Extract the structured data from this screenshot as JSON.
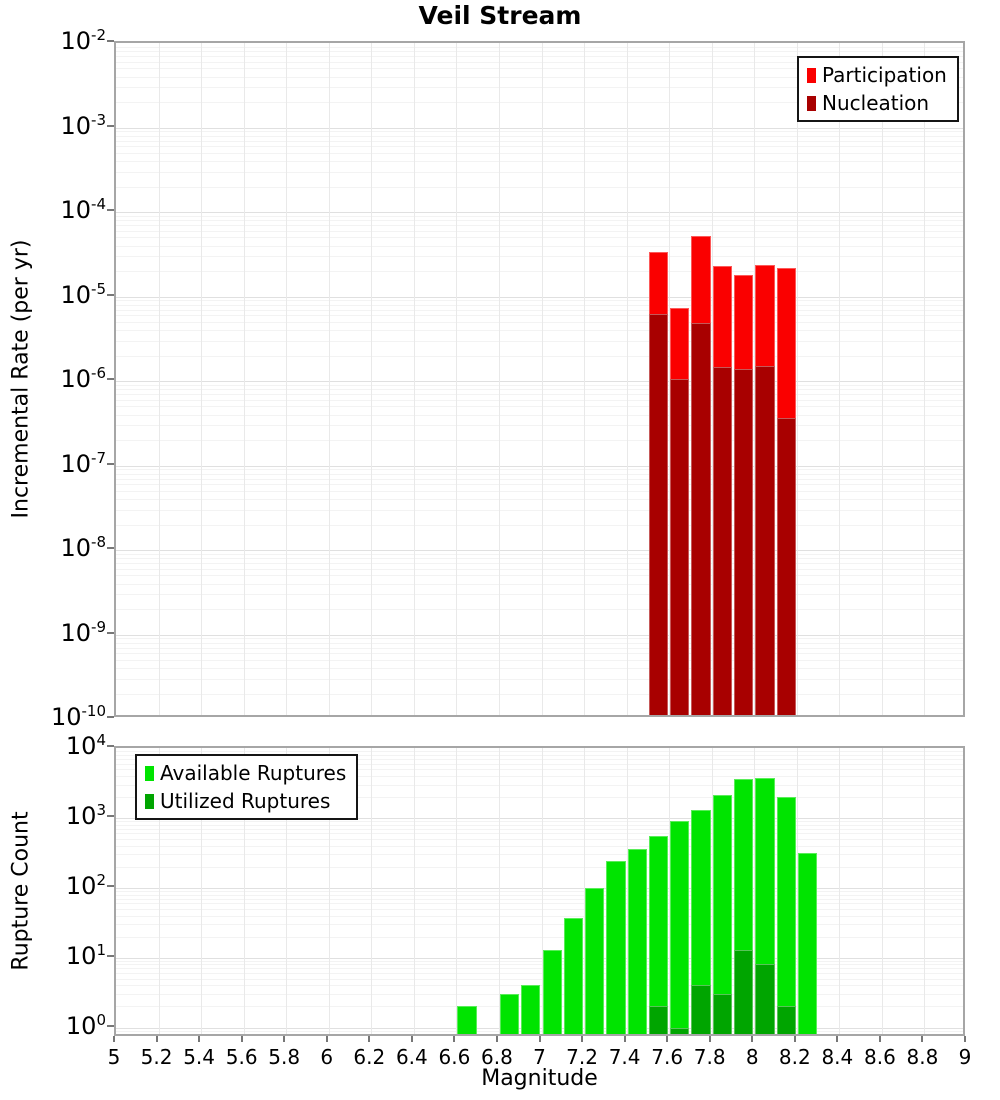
{
  "title": "Veil Stream",
  "colors": {
    "participation": "#fa0000",
    "nucleation": "#a80000",
    "available": "#00e400",
    "utilized": "#00a500",
    "grid_major": "#e0e0e0",
    "grid_minor": "#f3f3f3",
    "plot_border": "#a6a6a6"
  },
  "chart_data": [
    {
      "type": "bar",
      "title": "Veil Stream",
      "ylabel": "Incremental Rate (per yr)",
      "xlabel": "",
      "xlim": [
        5,
        9
      ],
      "ylim_exp": [
        -10,
        -2
      ],
      "x_tick_step": 0.2,
      "bin_width": 0.1,
      "grid": true,
      "legend_position": "top-right",
      "x": [
        7.55,
        7.65,
        7.75,
        7.85,
        7.95,
        8.05,
        8.15
      ],
      "series": [
        {
          "name": "Participation",
          "color": "#fa0000",
          "values": [
            3.4e-05,
            7.3e-06,
            5.2e-05,
            2.3e-05,
            1.8e-05,
            2.35e-05,
            2.2e-05
          ]
        },
        {
          "name": "Nucleation",
          "color": "#a80000",
          "values": [
            6.2e-06,
            1.05e-06,
            4.9e-06,
            1.45e-06,
            1.4e-06,
            1.5e-06,
            3.6e-07
          ]
        }
      ]
    },
    {
      "type": "bar",
      "title": "",
      "ylabel": "Rupture Count",
      "xlabel": "Magnitude",
      "xlim": [
        5,
        9
      ],
      "ylim_exp": [
        -0.15,
        4
      ],
      "x_tick_step": 0.2,
      "bin_width": 0.1,
      "grid": true,
      "legend_position": "top-left",
      "x": [
        6.65,
        6.85,
        6.95,
        7.05,
        7.15,
        7.25,
        7.35,
        7.45,
        7.55,
        7.65,
        7.75,
        7.85,
        7.95,
        8.05,
        8.15,
        8.25
      ],
      "series": [
        {
          "name": "Available Ruptures",
          "color": "#00e400",
          "values": [
            2,
            3,
            4,
            13,
            37,
            100,
            240,
            360,
            550,
            900,
            1300,
            2100,
            3600,
            3700,
            2000,
            310
          ]
        },
        {
          "name": "Utilized Ruptures",
          "color": "#00a500",
          "values": [
            null,
            null,
            null,
            null,
            null,
            null,
            null,
            null,
            2,
            1,
            4,
            3,
            13,
            8,
            2,
            null
          ]
        }
      ]
    }
  ]
}
